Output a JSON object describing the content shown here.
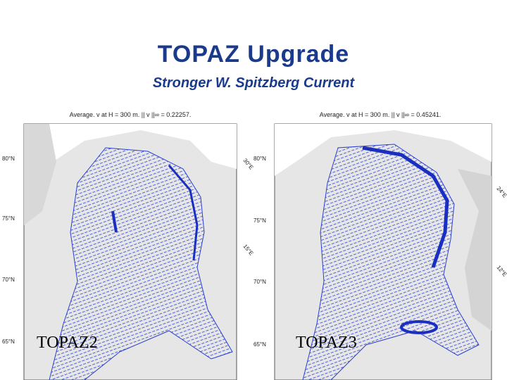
{
  "title": "TOPAZ Upgrade",
  "subtitle": "Stronger W. Spitzberg Current",
  "panels": [
    {
      "header": "Average. v at H = 300 m. || v ||∞ = 0.22257.",
      "lat_labels": [
        "80°N",
        "75°N",
        "70°N",
        "65°N"
      ],
      "lon_labels": [
        "30°E",
        "15°E"
      ],
      "label": "TOPAZ2"
    },
    {
      "header": "Average. v at H = 300 m. || v ||∞ = 0.45241.",
      "lat_labels": [
        "80°N",
        "75°N",
        "70°N",
        "65°N"
      ],
      "lon_labels": [
        "24°E",
        "12°E"
      ],
      "label": "TOPAZ3"
    }
  ]
}
